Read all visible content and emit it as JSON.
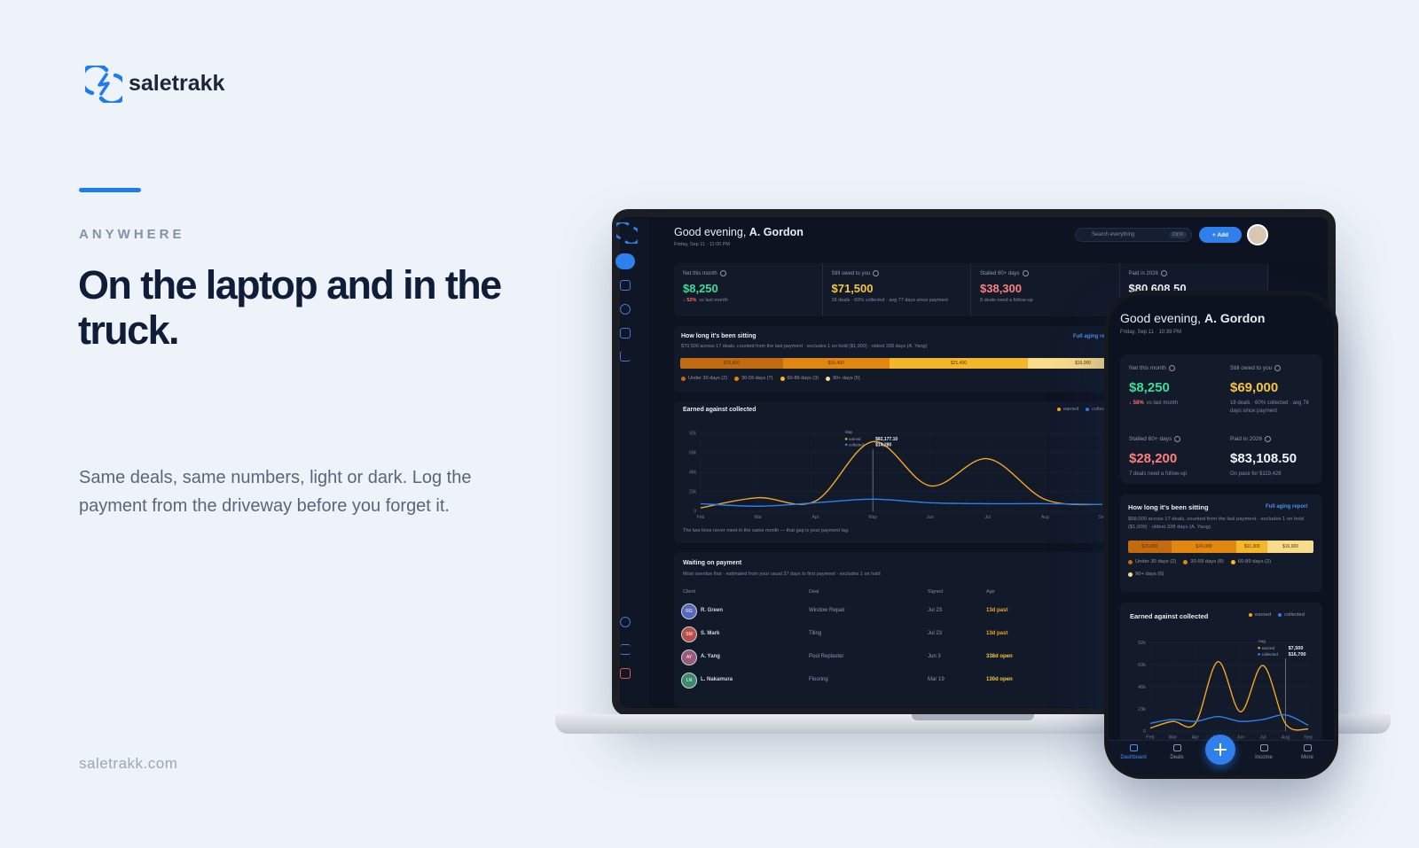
{
  "brand": {
    "name": "saletrakk"
  },
  "hero": {
    "eyebrow": "ANYWHERE",
    "headline": "On the laptop and in the truck.",
    "body": "Same deals, same numbers, light or dark. Log the payment from the driveway before you forget it.",
    "url": "saletrakk.com"
  },
  "laptop": {
    "greeting": "Good evening,",
    "user": "A. Gordon",
    "date": "Friday, Sep 11 · 11:00 PM",
    "search": "Search everything",
    "shortcut": "Ctrl K",
    "add": "+ Add",
    "stats": [
      {
        "label": "Net this month",
        "value": "$8,250",
        "delta": "↓ 52%",
        "note": "vs last month"
      },
      {
        "label": "Still owed to you",
        "value": "$71,500",
        "note": "18 deals · 60% collected · avg 77 days since payment"
      },
      {
        "label": "Stalled 60+ days",
        "value": "$38,300",
        "note": "8 deals need a follow-up"
      },
      {
        "label": "Paid in 2026",
        "value": "$80,608.50"
      }
    ],
    "aging": {
      "title": "How long it's been sitting",
      "link": "Full aging report",
      "subtitle": "$70,500 across 17 deals, counted from the last payment · excludes 1 on hold ($1,000) · oldest 338 days (A. Yang)",
      "values": [
        15800,
        16400,
        21400,
        16900
      ],
      "value_labels": [
        "$15,800",
        "$16,400",
        "$21,400",
        "$16,900"
      ],
      "colors": [
        "#c46a10",
        "#e1860f",
        "#f6b62a",
        "#f8dc8c"
      ],
      "legend": [
        "Under 30 days (2)",
        "30-59 days (7)",
        "60-89 days (3)",
        "90+ days (5)"
      ]
    },
    "chart": {
      "type": "line",
      "title": "Earned against collected",
      "categories": [
        "Feb",
        "Mar",
        "Apr",
        "May",
        "Jun",
        "Jul",
        "Aug",
        "Sep"
      ],
      "series": [
        {
          "name": "earned",
          "color": "#f5a524",
          "values": [
            4000,
            16000,
            12000,
            82177.1,
            30000,
            62000,
            14000,
            8000
          ]
        },
        {
          "name": "collected",
          "color": "#2f80ed",
          "values": [
            9000,
            6000,
            10000,
            14280,
            10000,
            9000,
            9000,
            8000
          ]
        }
      ],
      "ylim": [
        0,
        92000
      ],
      "yticks": [
        0,
        {
          "value": 23000,
          "label": "23k"
        },
        {
          "value": 46000,
          "label": "46k"
        },
        {
          "value": 69000,
          "label": "69k"
        },
        {
          "value": 92000,
          "label": "92k"
        }
      ],
      "grid": true,
      "tooltip": {
        "month": "May",
        "labels": [
          "$82,177.10",
          "$14,280"
        ]
      },
      "note": "The two lines never meet in the same month — that gap is your payment lag."
    },
    "payments": {
      "title": "Waiting on payment",
      "subtitle": "Most overdue first · estimated from your usual 37 days to first payment · excludes 1 on hold",
      "columns": [
        "Client",
        "Deal",
        "Signed",
        "Age"
      ],
      "rows": [
        [
          "RG",
          "R. Green",
          "Window Repair",
          "Jul 23",
          "13d past"
        ],
        [
          "SM",
          "S. Mark",
          "Tiling",
          "Jul 23",
          "13d past"
        ],
        [
          "AY",
          "A. Yang",
          "Pool Replaster",
          "Jun 3",
          "338d open"
        ],
        [
          "LN",
          "L. Nakamura",
          "Flooring",
          "Mar 19",
          "130d open"
        ]
      ]
    }
  },
  "phone": {
    "greeting": "Good evening,",
    "user": "A. Gordon",
    "date": "Friday, Sep 11 · 10:39 PM",
    "stats": [
      {
        "label": "Net this month",
        "value": "$8,250",
        "delta": "↓ 58%",
        "note": "vs last month"
      },
      {
        "label": "Still owed to you",
        "value": "$69,000",
        "note": "18 deals · 60% collected · avg 76 days since payment"
      },
      {
        "label": "Stalled 60+ days",
        "value": "$28,200",
        "note": "7 deals need a follow-up"
      },
      {
        "label": "Paid in 2026",
        "value": "$83,108.50",
        "note": "On pace for $119,428"
      }
    ],
    "aging": {
      "title": "How long it's been sitting",
      "link": "Full aging report",
      "subtitle": "$68,000 across 17 deals, counted from the last payment · excludes 1 on hold ($1,000) · oldest 338 days (A. Yang)",
      "values": [
        15800,
        24000,
        11300,
        16900
      ],
      "value_labels": [
        "$15,800",
        "$24,000",
        "$11,300",
        "$16,900"
      ],
      "colors": [
        "#c46a10",
        "#e1860f",
        "#f6b62a",
        "#f8dc8c"
      ],
      "legend": [
        "Under 30 days (2)",
        "30-59 days (8)",
        "60-89 days (2)",
        "90+ days (6)"
      ]
    },
    "chart": {
      "type": "line",
      "title": "Earned against collected",
      "categories": [
        "Feb",
        "Mar",
        "Apr",
        "May",
        "Jun",
        "Jul",
        "Aug",
        "Sep"
      ],
      "series": [
        {
          "name": "earned",
          "color": "#f5a524",
          "values": [
            3000,
            10000,
            8000,
            72000,
            20000,
            68000,
            7500,
            2000
          ]
        },
        {
          "name": "collected",
          "color": "#2f80ed",
          "values": [
            8000,
            12000,
            10000,
            15000,
            10000,
            12000,
            16700,
            6000
          ]
        }
      ],
      "ylim": [
        0,
        92000
      ],
      "yticks": [
        0,
        {
          "value": 23000,
          "label": "23k"
        },
        {
          "value": 46000,
          "label": "46k"
        },
        {
          "value": 69000,
          "label": "69k"
        },
        {
          "value": 92000,
          "label": "92k"
        }
      ],
      "grid": true,
      "tooltip": {
        "month": "Aug",
        "labels": [
          "$7,500",
          "$16,700"
        ]
      }
    },
    "nav": [
      "Dashboard",
      "Deals",
      "Income",
      "More"
    ]
  }
}
